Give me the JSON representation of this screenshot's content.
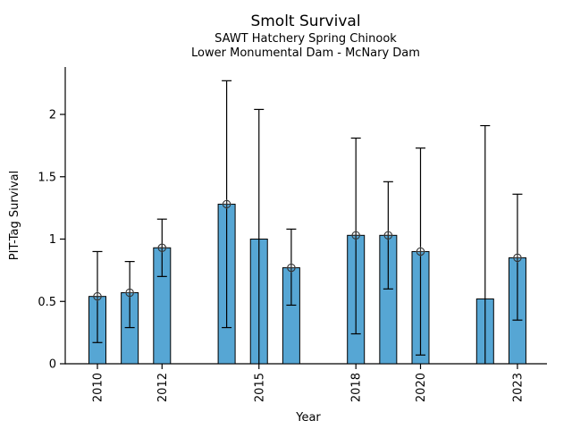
{
  "chart_data": {
    "type": "bar",
    "title": "Smolt Survival",
    "subtitle1": "SAWT Hatchery Spring Chinook",
    "subtitle2": "Lower Monumental Dam - McNary Dam",
    "xlabel": "Year",
    "ylabel": "PIT-Tag Survival",
    "ylim": [
      0,
      2.38
    ],
    "x_range": [
      2010,
      2023
    ],
    "yticks": [
      0,
      0.5,
      1,
      1.5,
      2
    ],
    "ytick_labels": [
      "0",
      "0.5",
      "1",
      "1.5",
      "2"
    ],
    "xticks": [
      2010,
      2012,
      2015,
      2018,
      2020,
      2023
    ],
    "grid": false,
    "legend": "none",
    "bar_color": "#56a6d4",
    "bar_edge_color": "#000000",
    "error_color": "#000000",
    "marker_color": "#333333",
    "bars": [
      {
        "year": 2010,
        "value": 0.54,
        "ci_low": 0.17,
        "ci_high": 0.9,
        "marker": true,
        "low_cap": true
      },
      {
        "year": 2011,
        "value": 0.57,
        "ci_low": 0.29,
        "ci_high": 0.82,
        "marker": true,
        "low_cap": true
      },
      {
        "year": 2012,
        "value": 0.93,
        "ci_low": 0.7,
        "ci_high": 1.16,
        "marker": true,
        "low_cap": true
      },
      {
        "year": 2014,
        "value": 1.28,
        "ci_low": 0.29,
        "ci_high": 2.27,
        "marker": true,
        "low_cap": true
      },
      {
        "year": 2015,
        "value": 1.0,
        "ci_low": 0.0,
        "ci_high": 2.04,
        "marker": false,
        "low_cap": false
      },
      {
        "year": 2016,
        "value": 0.77,
        "ci_low": 0.47,
        "ci_high": 1.08,
        "marker": true,
        "low_cap": true
      },
      {
        "year": 2018,
        "value": 1.03,
        "ci_low": 0.24,
        "ci_high": 1.81,
        "marker": true,
        "low_cap": true
      },
      {
        "year": 2019,
        "value": 1.03,
        "ci_low": 0.6,
        "ci_high": 1.46,
        "marker": true,
        "low_cap": true
      },
      {
        "year": 2020,
        "value": 0.9,
        "ci_low": 0.07,
        "ci_high": 1.73,
        "marker": true,
        "low_cap": true
      },
      {
        "year": 2022,
        "value": 0.52,
        "ci_low": 0.0,
        "ci_high": 1.91,
        "marker": false,
        "low_cap": false
      },
      {
        "year": 2023,
        "value": 0.85,
        "ci_low": 0.35,
        "ci_high": 1.36,
        "marker": true,
        "low_cap": true
      }
    ]
  }
}
